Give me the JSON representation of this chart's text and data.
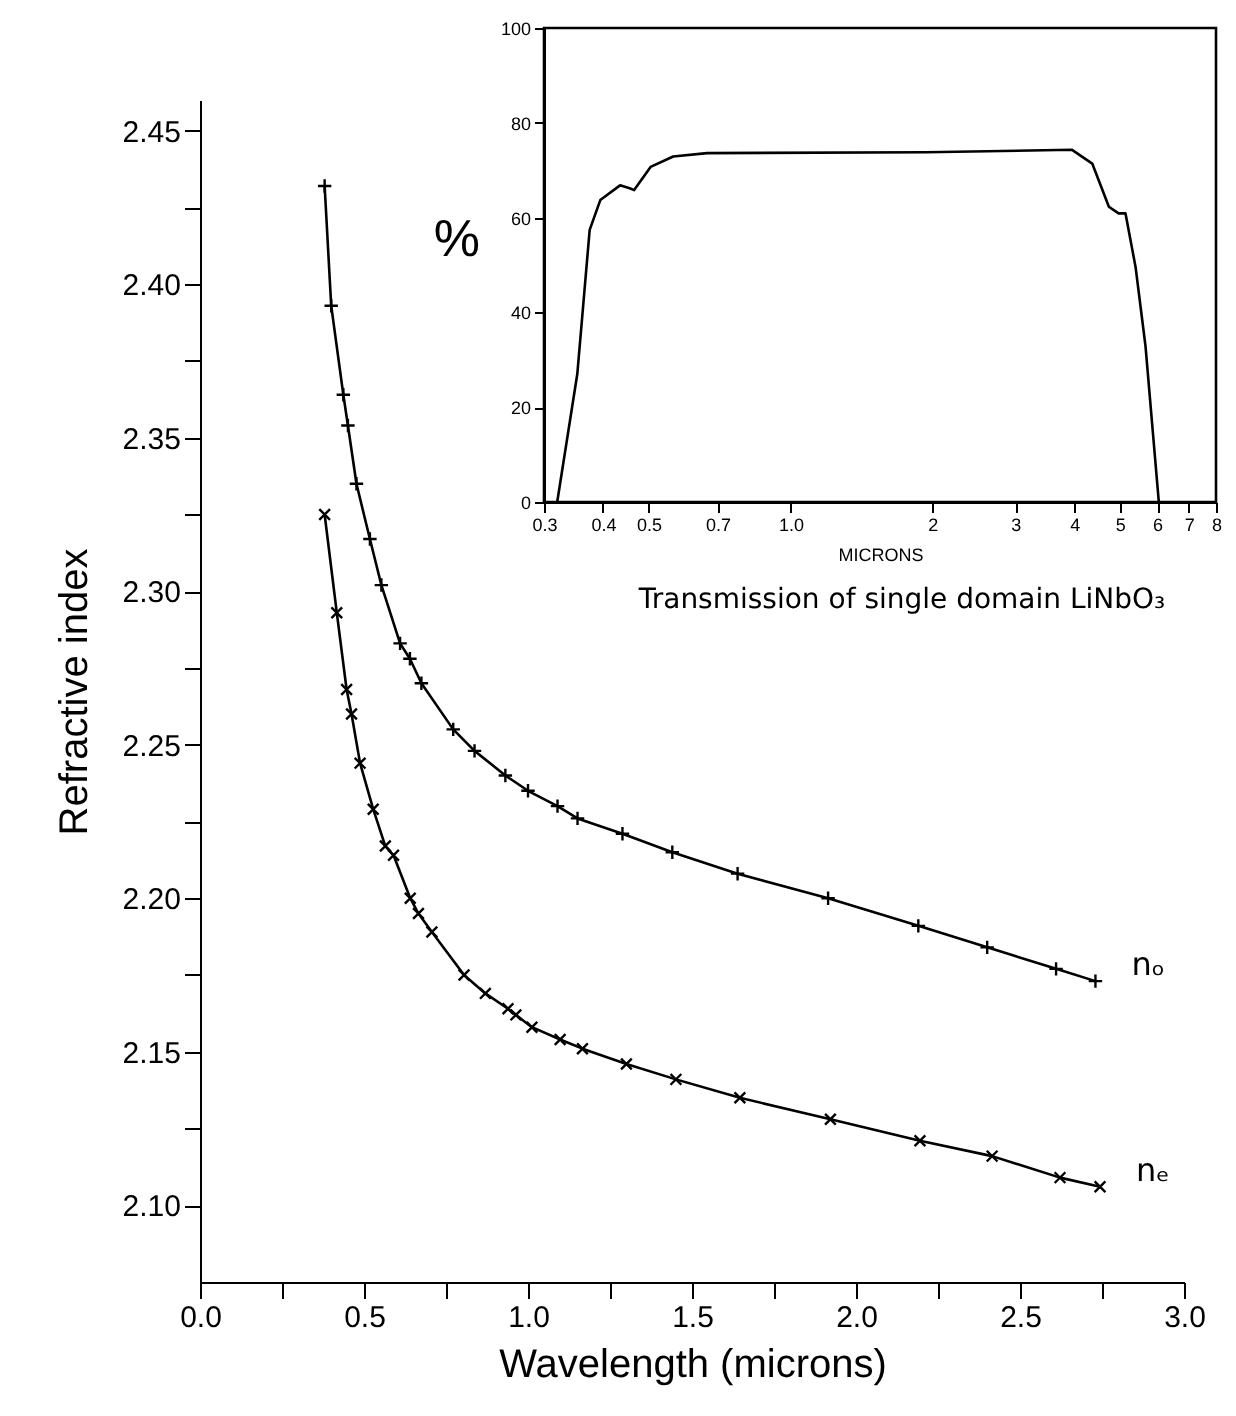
{
  "chart_data": [
    {
      "type": "line",
      "xlabel": "Wavelength  (microns)",
      "ylabel": "Refractive index",
      "xlim": [
        0,
        3
      ],
      "ylim": [
        2.075,
        2.46
      ],
      "xticks": [
        {
          "value": 0,
          "label": "0.0"
        },
        {
          "value": 0.25,
          "label": null
        },
        0.5,
        {
          "value": 0.75,
          "label": null
        },
        {
          "value": 1,
          "label": "1.0"
        },
        {
          "value": 1.25,
          "label": null
        },
        1.5,
        {
          "value": 1.75,
          "label": null
        },
        {
          "value": 2,
          "label": "2.0"
        },
        {
          "value": 2.25,
          "label": null
        },
        2.5,
        {
          "value": 2.75,
          "label": null
        },
        {
          "value": 3,
          "label": "3.0"
        }
      ],
      "yticks": [
        {
          "value": 2.1,
          "label": "2.10"
        },
        {
          "value": 2.125,
          "label": null
        },
        2.15,
        {
          "value": 2.175,
          "label": null
        },
        {
          "value": 2.2,
          "label": "2.20"
        },
        {
          "value": 2.225,
          "label": null
        },
        2.25,
        {
          "value": 2.275,
          "label": null
        },
        {
          "value": 2.3,
          "label": "2.30"
        },
        {
          "value": 2.325,
          "label": null
        },
        2.35,
        {
          "value": 2.375,
          "label": null
        },
        {
          "value": 2.4,
          "label": "2.40"
        },
        {
          "value": 2.425,
          "label": null
        },
        2.45
      ],
      "series": [
        {
          "name": "nₒ",
          "color": "#000000",
          "marker": "cross",
          "x": [
            0.38,
            0.4,
            0.437,
            0.451,
            0.477,
            0.518,
            0.553,
            0.61,
            0.64,
            0.675,
            0.772,
            0.837,
            0.931,
            1.0,
            1.09,
            1.151,
            1.288,
            1.44,
            1.639,
            1.915,
            2.19,
            2.4,
            2.61,
            2.73
          ],
          "values": [
            2.432,
            2.393,
            2.364,
            2.354,
            2.335,
            2.317,
            2.302,
            2.283,
            2.278,
            2.27,
            2.255,
            2.248,
            2.24,
            2.235,
            2.23,
            2.226,
            2.221,
            2.215,
            2.208,
            2.2,
            2.191,
            2.184,
            2.177,
            2.173
          ]
        },
        {
          "name": "nₑ",
          "color": "#000000",
          "marker": "x",
          "x": [
            0.38,
            0.417,
            0.447,
            0.462,
            0.488,
            0.528,
            0.565,
            0.59,
            0.641,
            0.666,
            0.707,
            0.805,
            0.87,
            0.939,
            0.963,
            1.012,
            1.098,
            1.166,
            1.3,
            1.451,
            1.646,
            1.922,
            2.195,
            2.415,
            2.622,
            2.744
          ],
          "values": [
            2.325,
            2.293,
            2.268,
            2.26,
            2.244,
            2.229,
            2.217,
            2.214,
            2.2,
            2.195,
            2.189,
            2.175,
            2.169,
            2.164,
            2.162,
            2.158,
            2.154,
            2.151,
            2.146,
            2.141,
            2.135,
            2.128,
            2.121,
            2.116,
            2.109,
            2.106
          ]
        }
      ]
    },
    {
      "type": "line",
      "xlabel": "MICRONS",
      "ylabel": "%",
      "log": "x",
      "xlim": [
        0.3,
        8
      ],
      "ylim": [
        0,
        100
      ],
      "xticks": [
        0.3,
        0.4,
        0.5,
        0.7,
        {
          "value": 1,
          "label": "1.0"
        },
        2,
        3,
        4,
        5,
        6,
        7,
        8
      ],
      "yticks": [
        0,
        20,
        40,
        60,
        80,
        100
      ],
      "annotations": [
        "Transmission of single domain LiNbO₃"
      ],
      "series": [
        {
          "color": "#000000",
          "x": [
            0.32,
            0.353,
            0.375,
            0.395,
            0.435,
            0.456,
            0.466,
            0.505,
            0.564,
            0.665,
            1.94,
            3.96,
            4.37,
            4.74,
            4.97,
            5.14,
            5.4,
            5.67,
            6.05
          ],
          "values": [
            0,
            27,
            57.4,
            63.7,
            66.8,
            66.2,
            65.8,
            70.7,
            72.9,
            73.6,
            73.8,
            74.3,
            71.4,
            62.3,
            60.9,
            60.9,
            49.6,
            32.8,
            0
          ]
        }
      ]
    }
  ]
}
